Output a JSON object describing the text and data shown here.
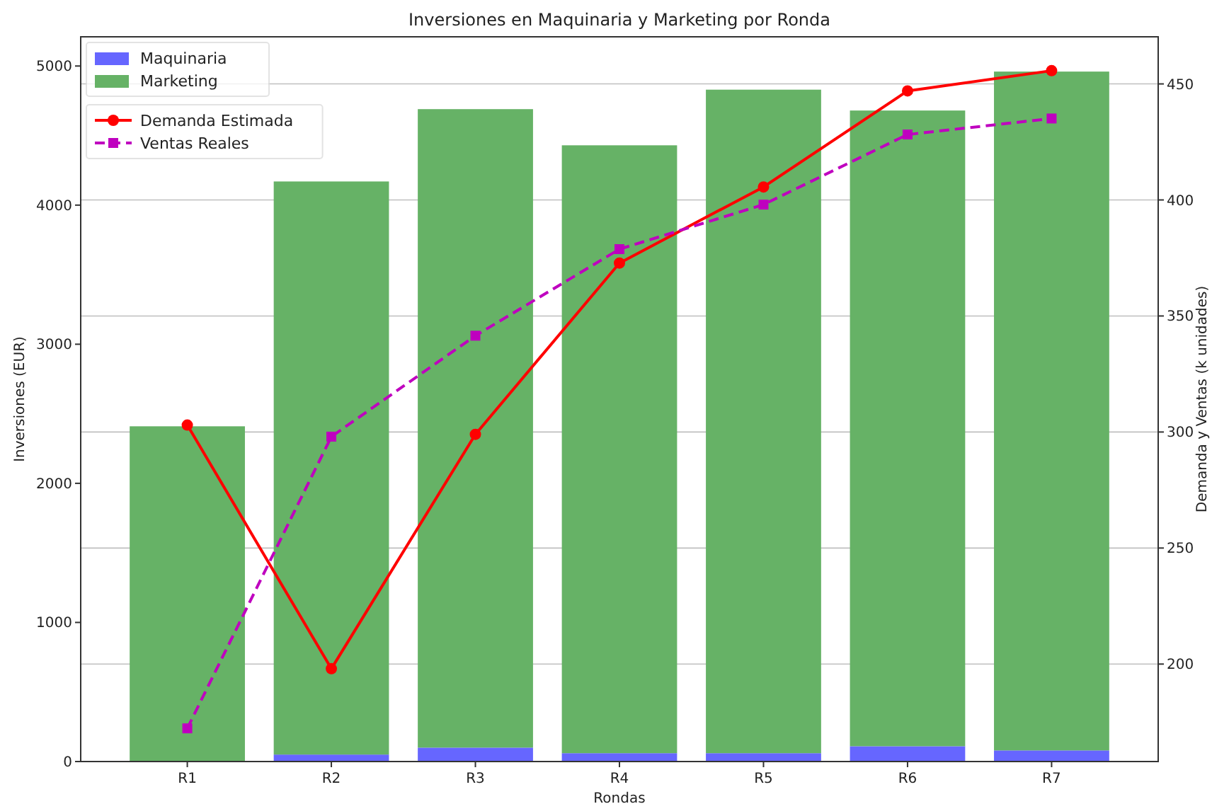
{
  "chart_data": {
    "type": "bar",
    "title": "Inversiones en Maquinaria y Marketing por Ronda",
    "xlabel": "Rondas",
    "ylabel": "Inversiones (EUR)",
    "y2label": "Demanda y Ventas (k unidades)",
    "categories": [
      "R1",
      "R2",
      "R3",
      "R4",
      "R5",
      "R6",
      "R7"
    ],
    "stacked": true,
    "series": [
      {
        "name": "Maquinaria",
        "color": "#6666ff",
        "values": [
          0,
          50,
          100,
          60,
          60,
          110,
          80
        ]
      },
      {
        "name": "Marketing",
        "color": "#66b266",
        "values": [
          2410,
          4120,
          4590,
          4370,
          4770,
          4570,
          4880
        ]
      },
      {
        "name": "Demanda Estimada",
        "type": "line",
        "axis": "y2",
        "color": "#ff0000",
        "marker": "circle",
        "line_style": "solid",
        "values": [
          303,
          198,
          299,
          372.8,
          405.6,
          447,
          455.7
        ]
      },
      {
        "name": "Ventas Reales",
        "type": "line",
        "axis": "y2",
        "color": "#bf00bf",
        "marker": "square",
        "line_style": "dashed",
        "values": [
          172.3,
          298,
          341.5,
          378.8,
          398,
          428.2,
          435.1
        ]
      }
    ],
    "ylim": [
      0,
      5210
    ],
    "yticks": [
      0,
      1000,
      2000,
      3000,
      4000,
      5000
    ],
    "y2lim": [
      158,
      470.3
    ],
    "y2ticks": [
      200,
      250,
      300,
      350,
      400,
      450
    ],
    "grid": true,
    "legend": "top left"
  }
}
